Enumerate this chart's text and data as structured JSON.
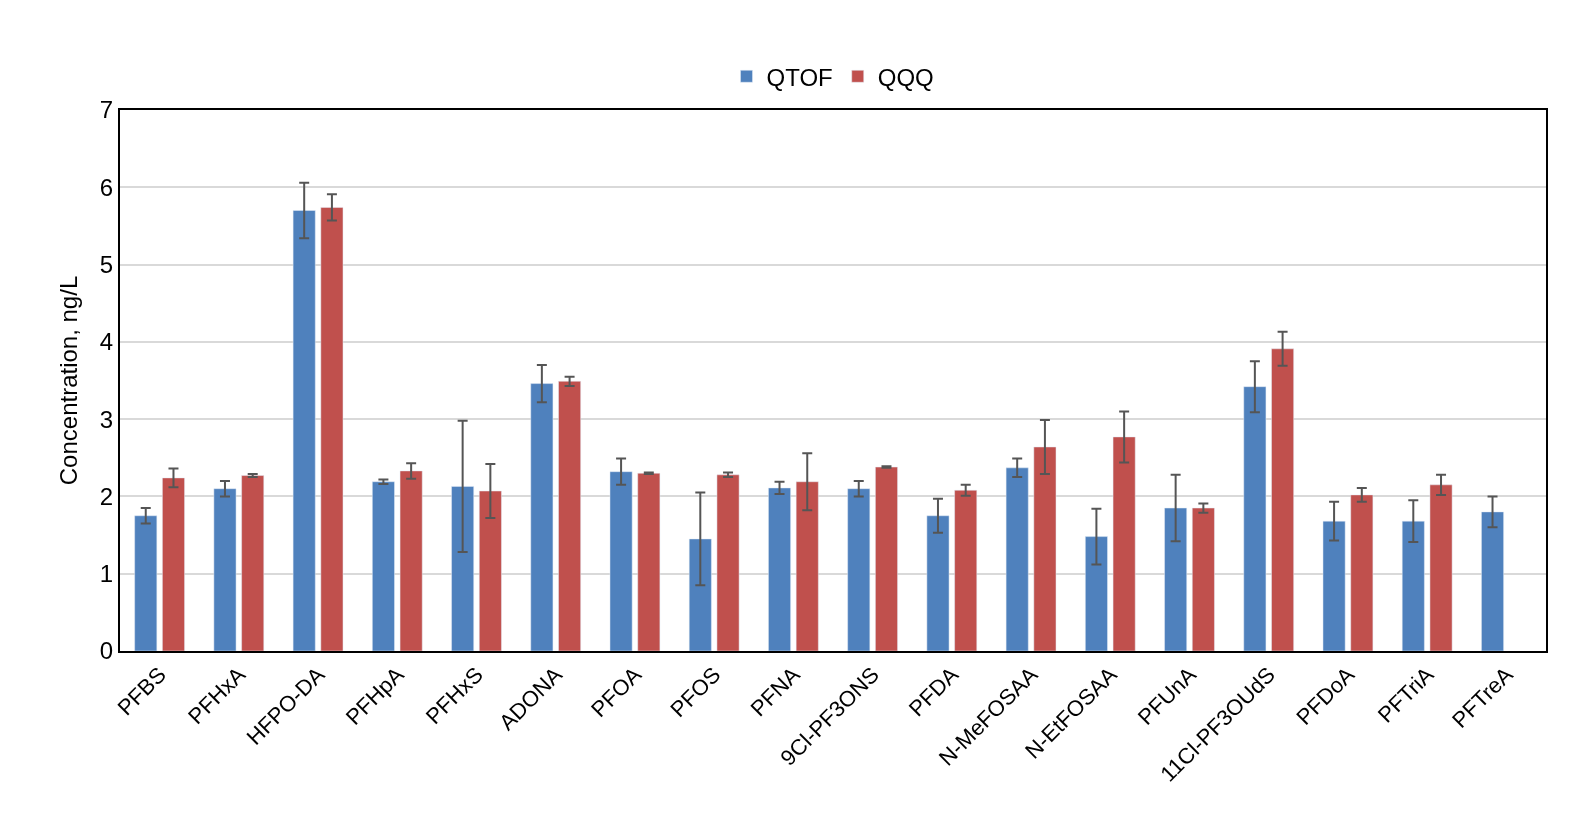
{
  "chart_data": {
    "type": "bar",
    "ylabel": "Concentration, ng/L",
    "categories": [
      "PFBS",
      "PFHxA",
      "HFPO-DA",
      "PFHpA",
      "PFHxS",
      "ADONA",
      "PFOA",
      "PFOS",
      "PFNA",
      "9Cl-PF3ONS",
      "PFDA",
      "N-MeFOSAA",
      "N-EtFOSAA",
      "PFUnA",
      "11Cl-PF3OUdS",
      "PFDoA",
      "PFTriA",
      "PFTreA"
    ],
    "series": [
      {
        "name": "QTOF",
        "color": "#4f81bd",
        "values": [
          1.75,
          2.1,
          5.7,
          2.19,
          2.13,
          3.46,
          2.32,
          1.45,
          2.11,
          2.1,
          1.75,
          2.37,
          1.48,
          1.85,
          3.42,
          1.68,
          1.68,
          1.8
        ],
        "errors": [
          0.1,
          0.1,
          0.36,
          0.03,
          0.85,
          0.24,
          0.17,
          0.6,
          0.08,
          0.1,
          0.22,
          0.12,
          0.36,
          0.43,
          0.33,
          0.25,
          0.27,
          0.2
        ]
      },
      {
        "name": "QQQ",
        "color": "#c0504d",
        "values": [
          2.24,
          2.27,
          5.74,
          2.33,
          2.07,
          3.49,
          2.3,
          2.28,
          2.19,
          2.38,
          2.08,
          2.64,
          2.77,
          1.85,
          3.91,
          2.02,
          2.15,
          null
        ],
        "errors": [
          0.12,
          0.02,
          0.17,
          0.1,
          0.35,
          0.06,
          0.01,
          0.03,
          0.37,
          0.01,
          0.07,
          0.35,
          0.33,
          0.06,
          0.22,
          0.09,
          0.13,
          null
        ]
      }
    ],
    "ylim": [
      0,
      7
    ],
    "yticks": [
      0,
      1,
      2,
      3,
      4,
      5,
      6,
      7
    ],
    "grid": "y",
    "legend": "top"
  }
}
